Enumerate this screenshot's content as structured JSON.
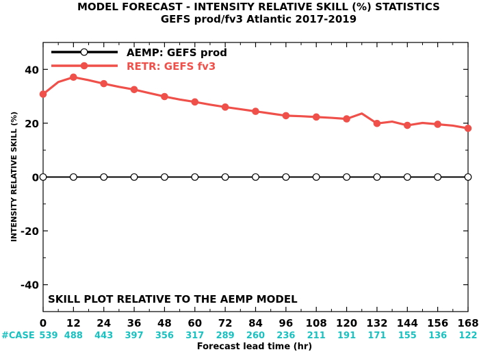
{
  "chart_data": {
    "type": "line",
    "title_line1": "MODEL FORECAST - INTENSITY RELATIVE SKILL (%) STATISTICS",
    "title_line2": "GEFS prod/fv3 Atlantic 2017-2019",
    "xlabel": "Forecast lead time (hr)",
    "ylabel": "INTENSITY RELATIVE SKILL (%)",
    "xlim": [
      0,
      168
    ],
    "ylim": [
      -50,
      50
    ],
    "x_ticks": [
      0,
      12,
      24,
      36,
      48,
      60,
      72,
      84,
      96,
      108,
      120,
      132,
      144,
      156,
      168
    ],
    "x_tick_labels": [
      "0",
      "12",
      "24",
      "36",
      "48",
      "60",
      "72",
      "84",
      "96",
      "108",
      "120",
      "132",
      "144",
      "156",
      "168"
    ],
    "y_ticks": [
      -40,
      -20,
      0,
      20,
      40
    ],
    "y_tick_labels": [
      "-40",
      "-20",
      "0",
      "20",
      "40"
    ],
    "grid": false,
    "legend_position": "top-left",
    "annotation": "SKILL PLOT RELATIVE TO THE AEMP MODEL",
    "case_label": "#CASE",
    "case_counts": [
      "539",
      "488",
      "443",
      "397",
      "356",
      "317",
      "289",
      "260",
      "236",
      "211",
      "191",
      "171",
      "155",
      "136",
      "122"
    ],
    "series": [
      {
        "name": "AEMP: GEFS prod",
        "color": "#000000",
        "marker": "open-circle",
        "x": [
          0,
          12,
          24,
          36,
          48,
          60,
          72,
          84,
          96,
          108,
          120,
          132,
          144,
          156,
          168
        ],
        "values": [
          0,
          0,
          0,
          0,
          0,
          0,
          0,
          0,
          0,
          0,
          0,
          0,
          0,
          0,
          0
        ]
      },
      {
        "name": "RETR: GEFS fv3",
        "color": "#f0504a",
        "marker": "filled-circle",
        "x": [
          0,
          6,
          12,
          18,
          24,
          30,
          36,
          42,
          48,
          54,
          60,
          66,
          72,
          78,
          84,
          90,
          96,
          102,
          108,
          114,
          120,
          126,
          132,
          138,
          144,
          150,
          156,
          162,
          168
        ],
        "values": [
          30.8,
          35.3,
          37.1,
          36.0,
          34.7,
          33.5,
          32.5,
          31.2,
          29.9,
          28.8,
          27.9,
          26.9,
          26.0,
          25.2,
          24.4,
          23.6,
          22.8,
          22.6,
          22.3,
          22.0,
          21.6,
          23.6,
          19.9,
          20.6,
          19.2,
          20.1,
          19.6,
          19.1,
          18.1
        ]
      }
    ],
    "marker_x": [
      0,
      12,
      24,
      36,
      48,
      60,
      72,
      84,
      96,
      108,
      120,
      132,
      144,
      156,
      168
    ]
  },
  "colors": {
    "case_text": "#19c1c1",
    "axis": "#000000"
  }
}
